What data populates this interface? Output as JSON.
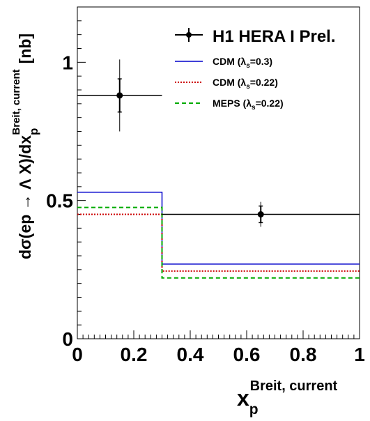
{
  "chart_data": {
    "type": "line",
    "xlim": [
      0,
      1
    ],
    "ylim": [
      0,
      1.2
    ],
    "x_ticks": [
      "0",
      "0.2",
      "0.4",
      "0.6",
      "0.8",
      "1"
    ],
    "x_tick_values": [
      0,
      0.2,
      0.4,
      0.6,
      0.8,
      1
    ],
    "y_ticks": [
      "0",
      "0.5",
      "1"
    ],
    "y_tick_values": [
      0,
      0.5,
      1
    ],
    "xlabel": {
      "main": "x",
      "sub": "p",
      "sup": "Breit, current"
    },
    "ylabel": {
      "pre": "dσ(ep → Λ X)/dx",
      "sub": "p",
      "sup": "Breit, current",
      "post": "[nb]"
    },
    "data": {
      "name": "H1 HERA I Prel.",
      "bins": [
        [
          0,
          0.3
        ],
        [
          0.3,
          1
        ]
      ],
      "x": [
        0.15,
        0.65
      ],
      "y": [
        0.88,
        0.45
      ],
      "yerr_stat": [
        0.06,
        0.03
      ],
      "yerr_tot": [
        0.13,
        0.045
      ]
    },
    "series": [
      {
        "name_main": "CDM (λ",
        "name_sub": "s",
        "name_post": "=0.3)",
        "bins": [
          [
            0,
            0.3
          ],
          [
            0.3,
            1
          ]
        ],
        "values": [
          0.53,
          0.27
        ],
        "color": "#0000cc",
        "style": "solid"
      },
      {
        "name_main": "CDM (λ",
        "name_sub": "s",
        "name_post": "=0.22)",
        "bins": [
          [
            0,
            0.3
          ],
          [
            0.3,
            1
          ]
        ],
        "values": [
          0.45,
          0.245
        ],
        "color": "#cc0000",
        "style": "dotted"
      },
      {
        "name_main": "MEPS (λ",
        "name_sub": "s",
        "name_post": "=0.22)",
        "bins": [
          [
            0,
            0.3
          ],
          [
            0.3,
            1
          ]
        ],
        "values": [
          0.475,
          0.22
        ],
        "color": "#00aa00",
        "style": "dashed"
      }
    ],
    "grid": false,
    "legend_position": "top-right"
  }
}
